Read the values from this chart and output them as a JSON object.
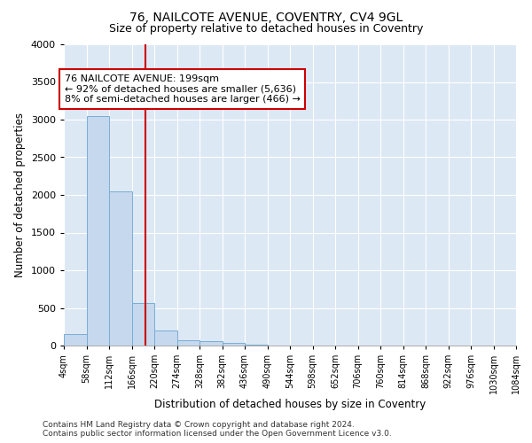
{
  "title": "76, NAILCOTE AVENUE, COVENTRY, CV4 9GL",
  "subtitle": "Size of property relative to detached houses in Coventry",
  "xlabel": "Distribution of detached houses by size in Coventry",
  "ylabel": "Number of detached properties",
  "property_size": 199,
  "bin_edges": [
    4,
    58,
    112,
    166,
    220,
    274,
    328,
    382,
    436,
    490,
    544,
    598,
    652,
    706,
    760,
    814,
    868,
    922,
    976,
    1030,
    1084
  ],
  "bar_heights": [
    150,
    3050,
    2050,
    560,
    200,
    75,
    55,
    40,
    10,
    5,
    2,
    1,
    0,
    0,
    0,
    0,
    0,
    0,
    0,
    0
  ],
  "bar_color": "#c5d8ee",
  "bar_edge_color": "#7aadd4",
  "vline_color": "#cc0000",
  "annotation_text": "76 NAILCOTE AVENUE: 199sqm\n← 92% of detached houses are smaller (5,636)\n8% of semi-detached houses are larger (466) →",
  "annotation_box_color": "#cc0000",
  "ylim": [
    0,
    4000
  ],
  "background_color": "#dde8f5",
  "grid_color": "#ffffff",
  "footer_line1": "Contains HM Land Registry data © Crown copyright and database right 2024.",
  "footer_line2": "Contains public sector information licensed under the Open Government Licence v3.0.",
  "title_fontsize": 10,
  "subtitle_fontsize": 9,
  "annotation_fontsize": 8,
  "tick_fontsize": 7,
  "axis_label_fontsize": 8.5,
  "footer_fontsize": 6.5
}
